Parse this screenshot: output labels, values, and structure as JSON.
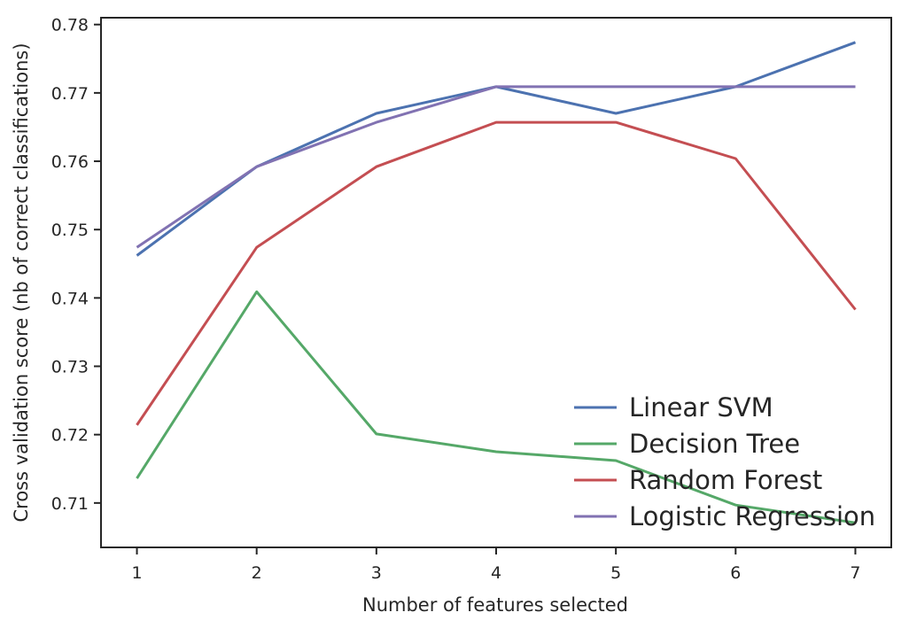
{
  "chart_data": {
    "type": "line",
    "xlabel": "Number of features selected",
    "ylabel": "Cross validation score (nb of correct classifications)",
    "x": [
      1,
      2,
      3,
      4,
      5,
      6,
      7
    ],
    "xlim": [
      0.7,
      7.3
    ],
    "ylim": [
      0.7035,
      0.781
    ],
    "xticks": [
      "1",
      "2",
      "3",
      "4",
      "5",
      "6",
      "7"
    ],
    "yticks": [
      "0.71",
      "0.72",
      "0.73",
      "0.74",
      "0.75",
      "0.76",
      "0.77",
      "0.78"
    ],
    "legend_position": "lower-right",
    "grid": false,
    "series": [
      {
        "name": "Linear SVM",
        "color": "#4C72B0",
        "values": [
          0.7462,
          0.7592,
          0.767,
          0.7709,
          0.767,
          0.7709,
          0.7774
        ]
      },
      {
        "name": "Decision Tree",
        "color": "#55A868",
        "values": [
          0.7136,
          0.7409,
          0.7201,
          0.7175,
          0.7162,
          0.7097,
          0.7071
        ]
      },
      {
        "name": "Random Forest",
        "color": "#C44E52",
        "values": [
          0.7214,
          0.7474,
          0.7592,
          0.7657,
          0.7657,
          0.7604,
          0.7383
        ]
      },
      {
        "name": "Logistic Regression",
        "color": "#8172B2",
        "values": [
          0.7474,
          0.7592,
          0.7657,
          0.7709,
          0.7709,
          0.7709,
          0.7709
        ]
      }
    ]
  }
}
